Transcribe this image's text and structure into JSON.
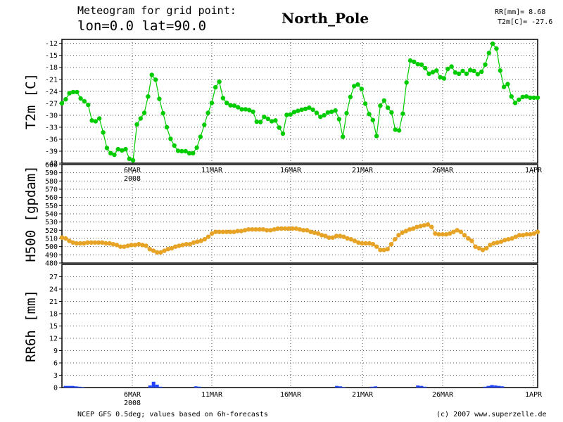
{
  "header": {
    "line1": "Meteogram for grid point:",
    "line2": "lon=0.0 lat=90.0",
    "location": "North_Pole",
    "rr_text": "RR[mm]= 8.68",
    "t2m_text": "T2m[C]= -27.6"
  },
  "footer": {
    "source": "NCEP GFS 0.5deg; values based on 6h-forecasts",
    "copyright": "(c) 2007 www.superzelle.de"
  },
  "chart_data": [
    {
      "type": "line",
      "ylabel": "T2m [C]",
      "ylim": [
        -42,
        -11
      ],
      "yticks": [
        "-12",
        "-15",
        "-18",
        "-21",
        "-24",
        "-27",
        "-30",
        "-33",
        "-36",
        "-39",
        "-42"
      ],
      "grid": true,
      "color": "#00cc00",
      "values": [
        -27,
        -26,
        -24.5,
        -24.2,
        -24.2,
        -25.8,
        -26.5,
        -27.4,
        -31.3,
        -31.5,
        -30.8,
        -34.3,
        -38.2,
        -39.5,
        -39.9,
        -38.5,
        -38.8,
        -38.5,
        -40.9,
        -41.3,
        -32.3,
        -30.8,
        -29.4,
        -25.3,
        -19.9,
        -21.1,
        -25.9,
        -29.5,
        -33,
        -35.9,
        -37.6,
        -38.9,
        -39,
        -39,
        -39.5,
        -39.5,
        -38.1,
        -35.4,
        -32.4,
        -29.4,
        -26.9,
        -23,
        -21.6,
        -25.7,
        -26.9,
        -27.5,
        -27.6,
        -28,
        -28.5,
        -28.5,
        -28.7,
        -29.1,
        -31.6,
        -31.7,
        -30.4,
        -30.9,
        -31.5,
        -31.3,
        -33.1,
        -34.6,
        -29.9,
        -29.8,
        -29.2,
        -28.9,
        -28.6,
        -28.4,
        -28.1,
        -28.6,
        -29.4,
        -30.4,
        -30,
        -29.3,
        -29.1,
        -28.8,
        -31,
        -35.4,
        -29.5,
        -25.4,
        -22.7,
        -22.3,
        -23.4,
        -27.1,
        -29.7,
        -31.2,
        -35.2,
        -27.6,
        -26.3,
        -28.1,
        -29.3,
        -33.6,
        -33.8,
        -29.6,
        -21.8,
        -16.3,
        -16.6,
        -17.2,
        -17.3,
        -18.2,
        -19.6,
        -19.2,
        -18.8,
        -20.5,
        -20.8,
        -18.4,
        -17.8,
        -19.3,
        -19.6,
        -18.9,
        -19.6,
        -18.7,
        -18.9,
        -19.7,
        -19.1,
        -17.3,
        -14.4,
        -12.1,
        -13.3,
        -18.8,
        -22.9,
        -22.2,
        -25.3,
        -26.9,
        -26.1,
        -25.4,
        -25.3,
        -25.6,
        -25.6,
        -25.6
      ]
    },
    {
      "type": "line",
      "ylabel": "H500 [gpdam]",
      "ylim": [
        480,
        600
      ],
      "yticks": [
        "600",
        "590",
        "580",
        "570",
        "560",
        "550",
        "540",
        "530",
        "520",
        "510",
        "500",
        "490",
        "480"
      ],
      "grid": true,
      "color": "#e6a325",
      "values": [
        511,
        510,
        507,
        505,
        504,
        504,
        504,
        505,
        505,
        505,
        505,
        505,
        504,
        504,
        503,
        502,
        500,
        500,
        501,
        502,
        502,
        503,
        502,
        501,
        497,
        495,
        493,
        493,
        495,
        497,
        498,
        500,
        501,
        502,
        503,
        503,
        505,
        506,
        507,
        509,
        512,
        516,
        518,
        518,
        518,
        518,
        518,
        518,
        519,
        519,
        520,
        521,
        521,
        521,
        521,
        521,
        520,
        520,
        521,
        522,
        522,
        522,
        522,
        522,
        522,
        521,
        520,
        520,
        518,
        517,
        516,
        514,
        513,
        511,
        511,
        513,
        513,
        512,
        510,
        509,
        507,
        505,
        504,
        504,
        504,
        503,
        500,
        496,
        496,
        497,
        503,
        509,
        514,
        517,
        519,
        521,
        522,
        524,
        525,
        526,
        527,
        524,
        516,
        515,
        515,
        515,
        516,
        518,
        520,
        518,
        514,
        510,
        507,
        500,
        498,
        496,
        498,
        502,
        504,
        505,
        506,
        508,
        509,
        510,
        512,
        514,
        514,
        515,
        515,
        516,
        518
      ]
    },
    {
      "type": "bar",
      "ylabel": "RR6h [mm]",
      "ylim": [
        0,
        30
      ],
      "yticks": [
        "0",
        "3",
        "6",
        "9",
        "12",
        "15",
        "18",
        "21",
        "24",
        "27"
      ],
      "grid": true,
      "color": "#2244ff",
      "values": [
        0,
        0.4,
        0.4,
        0.4,
        0.3,
        0.2,
        0.1,
        0,
        0,
        0,
        0,
        0,
        0,
        0,
        0,
        0,
        0,
        0,
        0,
        0,
        0,
        0,
        0,
        0,
        0,
        0.5,
        1.4,
        0.7,
        0.2,
        0,
        0,
        0,
        0,
        0,
        0,
        0,
        0,
        0,
        0.3,
        0.2,
        0,
        0,
        0,
        0,
        0,
        0,
        0,
        0,
        0,
        0,
        0,
        0,
        0,
        0,
        0,
        0,
        0,
        0,
        0,
        0,
        0,
        0,
        0,
        0,
        0,
        0,
        0,
        0,
        0,
        0,
        0,
        0,
        0,
        0,
        0,
        0,
        0,
        0,
        0.4,
        0.3,
        0.1,
        0,
        0,
        0,
        0,
        0,
        0,
        0,
        0.2,
        0.3,
        0,
        0,
        0,
        0,
        0,
        0,
        0,
        0,
        0,
        0,
        0,
        0.5,
        0.4,
        0.2,
        0,
        0,
        0,
        0,
        0,
        0,
        0,
        0,
        0,
        0,
        0,
        0,
        0,
        0,
        0,
        0,
        0.2,
        0.4,
        0.6,
        0.5,
        0.4,
        0.3,
        0,
        0,
        0,
        0,
        0,
        0,
        0,
        0,
        0,
        0
      ]
    }
  ],
  "x_axis": {
    "tick_labels": [
      "6MAR",
      "11MAR",
      "16MAR",
      "21MAR",
      "26MAR",
      "1APR"
    ],
    "year_label": "2008"
  }
}
